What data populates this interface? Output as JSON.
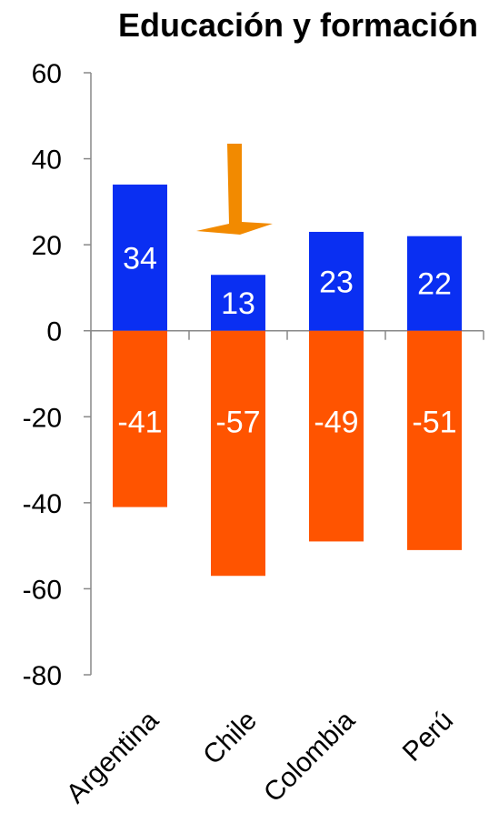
{
  "chart_data": {
    "type": "bar",
    "title": "Educación y formación",
    "xlabel": "",
    "ylabel": "",
    "categories": [
      "Argentina",
      "Chile",
      "Colombia",
      "Perú"
    ],
    "ylim": [
      -80,
      60
    ],
    "yticks": [
      60,
      40,
      20,
      0,
      -20,
      -40,
      -60,
      -80
    ],
    "grid": false,
    "legend": "none",
    "series": [
      {
        "values": [
          34,
          13,
          23,
          22
        ],
        "labels": [
          "34",
          "13",
          "23",
          "22"
        ],
        "color": "#0a2ff2"
      },
      {
        "values": [
          -41,
          -57,
          -49,
          -51
        ],
        "labels": [
          "-41",
          "-57",
          "-49",
          "-51"
        ],
        "color": "#ff5400"
      }
    ],
    "annotation": {
      "type": "arrow",
      "category": "Chile",
      "color": "#f28a00"
    }
  }
}
